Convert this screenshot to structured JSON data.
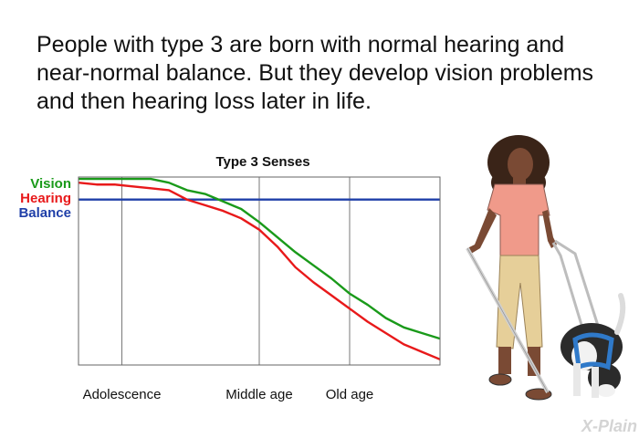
{
  "caption": "People with type 3 are born with normal hearing and near-normal balance. But they develop vision problems and then hearing loss later in life.",
  "watermark": "X-Plain",
  "chart_data": {
    "type": "line",
    "title": "Type 3 Senses",
    "xlabel": "",
    "ylabel": "",
    "x": [
      0,
      5,
      10,
      15,
      20,
      25,
      30,
      35,
      40,
      45,
      50,
      55,
      60,
      65,
      70,
      75,
      80,
      85,
      90,
      95,
      100
    ],
    "xlim": [
      0,
      100
    ],
    "ylim": [
      0,
      100
    ],
    "categories": [
      "Adolescence",
      "Middle age",
      "Old age"
    ],
    "category_positions": [
      12,
      50,
      75
    ],
    "grid": "vertical-at-categories",
    "legend": "left",
    "series": [
      {
        "name": "Vision",
        "color": "#1a9a1a",
        "values": [
          99,
          99,
          99,
          99,
          99,
          97,
          93,
          91,
          87,
          83,
          76,
          68,
          60,
          53,
          46,
          38,
          32,
          25,
          20,
          17,
          14
        ]
      },
      {
        "name": "Hearing",
        "color": "#e8191a",
        "values": [
          97,
          96,
          96,
          95,
          94,
          93,
          88,
          85,
          82,
          78,
          72,
          63,
          52,
          44,
          37,
          30,
          23,
          17,
          11,
          7,
          3
        ]
      },
      {
        "name": "Balance",
        "color": "#1f3fa8",
        "values": [
          88,
          88,
          88,
          88,
          88,
          88,
          88,
          88,
          88,
          88,
          88,
          88,
          88,
          88,
          88,
          88,
          88,
          88,
          88,
          88,
          88
        ]
      }
    ]
  },
  "illustration": {
    "description_icon": "woman-with-cane-and-guide-dog-icon",
    "shirt_color": "#f09a8a",
    "pants_color": "#e6cf99",
    "skin_color": "#7a4a34",
    "hair_color": "#3a2418",
    "dog_harness_color": "#2f79c9"
  }
}
